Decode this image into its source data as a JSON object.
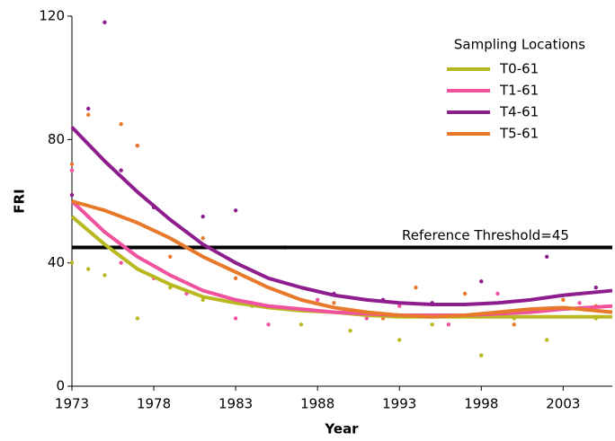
{
  "chart_data": {
    "type": "scatter",
    "x_label": "Year",
    "y_label": "FRI",
    "legend_title": "Sampling Locations",
    "xlim": [
      1973,
      2006
    ],
    "xticks": [
      1973,
      1978,
      1983,
      1988,
      1993,
      1998,
      2003
    ],
    "ylim": [
      0,
      120
    ],
    "yticks": [
      0,
      40,
      80,
      120
    ],
    "reference": {
      "value": 45,
      "label": "Reference Threshold=45",
      "color": "#000000"
    },
    "series": [
      {
        "name": "T0-61",
        "color": "#b8b820",
        "x": [
          1973,
          1974,
          1975,
          1976,
          1977,
          1979,
          1981,
          1984,
          1987,
          1990,
          1993,
          1995,
          1998,
          2000,
          2002,
          2005
        ],
        "values": [
          40,
          38,
          36,
          42,
          22,
          32,
          28,
          26,
          20,
          18,
          15,
          20,
          10,
          22,
          15,
          22
        ],
        "trend": {
          "x": [
            1973,
            1975,
            1977,
            1979,
            1981,
            1983,
            1985,
            1987,
            1989,
            1991,
            1993,
            1995,
            1997,
            1999,
            2001,
            2003,
            2006
          ],
          "values": [
            55,
            46,
            38,
            33,
            29,
            27,
            25.5,
            24.5,
            24,
            23,
            22.5,
            22.5,
            22.5,
            22.5,
            22.5,
            22.5,
            22.5
          ]
        }
      },
      {
        "name": "T1-61",
        "color": "#f0529e",
        "x": [
          1973,
          1974,
          1975,
          1976,
          1978,
          1980,
          1983,
          1985,
          1988,
          1991,
          1993,
          1996,
          1999,
          2001,
          2004
        ],
        "values": [
          70,
          55,
          45,
          40,
          35,
          30,
          22,
          20,
          28,
          22,
          26,
          20,
          30,
          24,
          27
        ],
        "trend": {
          "x": [
            1973,
            1975,
            1977,
            1979,
            1981,
            1983,
            1985,
            1987,
            1989,
            1991,
            1993,
            1995,
            1997,
            1999,
            2001,
            2003,
            2006
          ],
          "values": [
            60,
            50,
            42,
            36,
            31,
            28,
            26,
            25,
            24,
            23.5,
            23,
            23,
            23,
            23.5,
            24,
            25,
            26
          ]
        }
      },
      {
        "name": "T4-61",
        "color": "#8e1e8e",
        "x": [
          1973,
          1974,
          1975,
          1976,
          1977,
          1978,
          1980,
          1981,
          1983,
          1986,
          1989,
          1992,
          1995,
          1998,
          2002,
          2005
        ],
        "values": [
          62,
          90,
          118,
          70,
          78,
          58,
          50,
          55,
          57,
          45,
          30,
          28,
          27,
          34,
          42,
          32
        ],
        "trend": {
          "x": [
            1973,
            1975,
            1977,
            1979,
            1981,
            1983,
            1985,
            1987,
            1989,
            1991,
            1993,
            1995,
            1997,
            1999,
            2001,
            2003,
            2006
          ],
          "values": [
            84,
            73,
            63,
            54,
            46,
            40,
            35,
            32,
            29.5,
            28,
            27,
            26.5,
            26.5,
            27,
            28,
            29.5,
            31
          ]
        }
      },
      {
        "name": "T5-61",
        "color": "#e8792a",
        "x": [
          1973,
          1974,
          1975,
          1976,
          1977,
          1979,
          1981,
          1983,
          1986,
          1989,
          1992,
          1994,
          1997,
          2000,
          2003,
          2005
        ],
        "values": [
          72,
          88,
          50,
          85,
          78,
          42,
          48,
          35,
          30,
          27,
          22,
          32,
          30,
          20,
          28,
          26
        ],
        "trend": {
          "x": [
            1973,
            1975,
            1977,
            1979,
            1981,
            1983,
            1985,
            1987,
            1989,
            1991,
            1993,
            1995,
            1997,
            1999,
            2001,
            2003,
            2006
          ],
          "values": [
            60,
            57,
            53,
            48,
            42,
            37,
            32,
            28,
            25.5,
            24,
            23,
            22.5,
            23,
            24,
            25,
            25.5,
            24
          ]
        }
      }
    ]
  }
}
